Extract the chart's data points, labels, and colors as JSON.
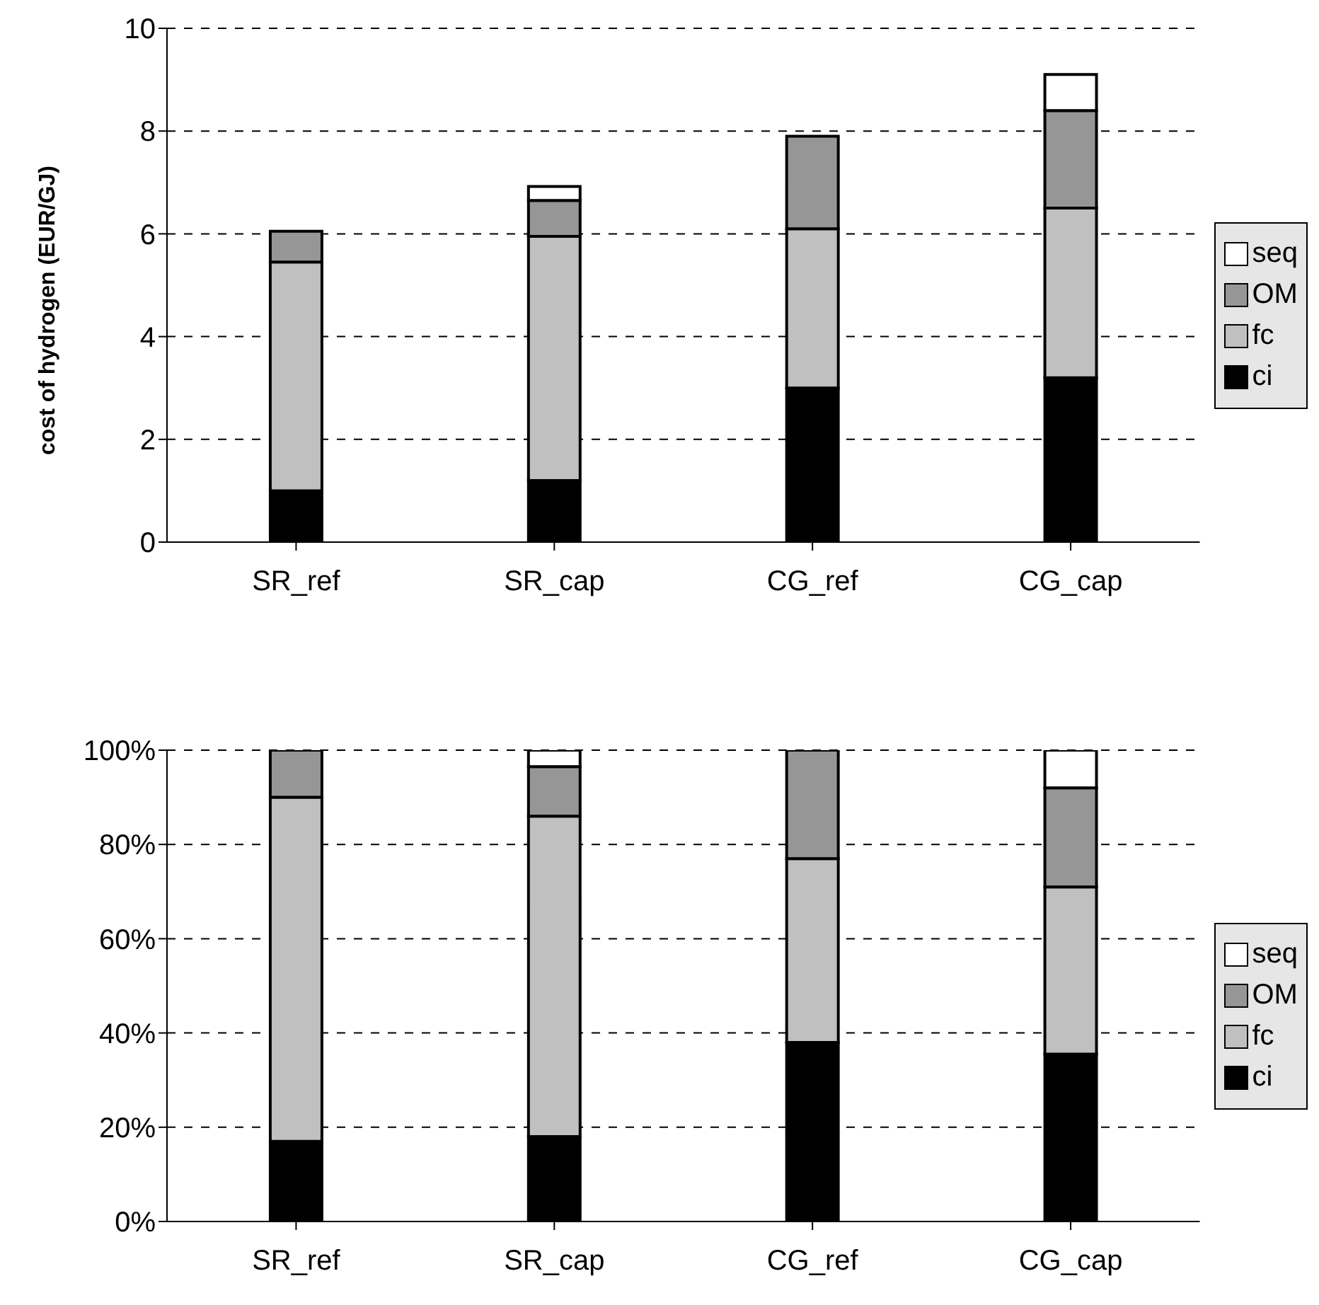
{
  "chart_data": [
    {
      "type": "bar",
      "ylabel": "cost of hydrogen (EUR/GJ)",
      "categories": [
        "SR_ref",
        "SR_cap",
        "CG_ref",
        "CG_cap"
      ],
      "stacked": true,
      "ylim": [
        0,
        10
      ],
      "yticks": [
        0,
        2,
        4,
        6,
        8,
        10
      ],
      "grid": "y",
      "legend": "right",
      "series": [
        {
          "name": "ci",
          "color": "#000000",
          "values": [
            1.0,
            1.2,
            3.0,
            3.2
          ]
        },
        {
          "name": "fc",
          "color": "#c0c0c0",
          "values": [
            4.45,
            4.75,
            3.1,
            3.3
          ]
        },
        {
          "name": "OM",
          "color": "#969696",
          "values": [
            0.6,
            0.7,
            1.8,
            1.9
          ]
        },
        {
          "name": "seq",
          "color": "#ffffff",
          "values": [
            0,
            0.27,
            0,
            0.7
          ]
        }
      ]
    },
    {
      "type": "bar",
      "categories": [
        "SR_ref",
        "SR_cap",
        "CG_ref",
        "CG_cap"
      ],
      "stacked": true,
      "ylim": [
        0,
        100
      ],
      "yticks": [
        {
          "value": 0,
          "label": "0%"
        },
        {
          "value": 20,
          "label": "20%"
        },
        {
          "value": 40,
          "label": "40%"
        },
        {
          "value": 60,
          "label": "60%"
        },
        {
          "value": 80,
          "label": "80%"
        },
        {
          "value": 100,
          "label": "100%"
        }
      ],
      "grid": "y",
      "legend": "right",
      "series": [
        {
          "name": "ci",
          "color": "#000000",
          "values": [
            17,
            18,
            38,
            35.5
          ]
        },
        {
          "name": "fc",
          "color": "#c0c0c0",
          "values": [
            73,
            68,
            39,
            35.5
          ]
        },
        {
          "name": "OM",
          "color": "#969696",
          "values": [
            10,
            10.5,
            23,
            21
          ]
        },
        {
          "name": "seq",
          "color": "#ffffff",
          "values": [
            0,
            3.5,
            0,
            8
          ]
        }
      ]
    }
  ]
}
